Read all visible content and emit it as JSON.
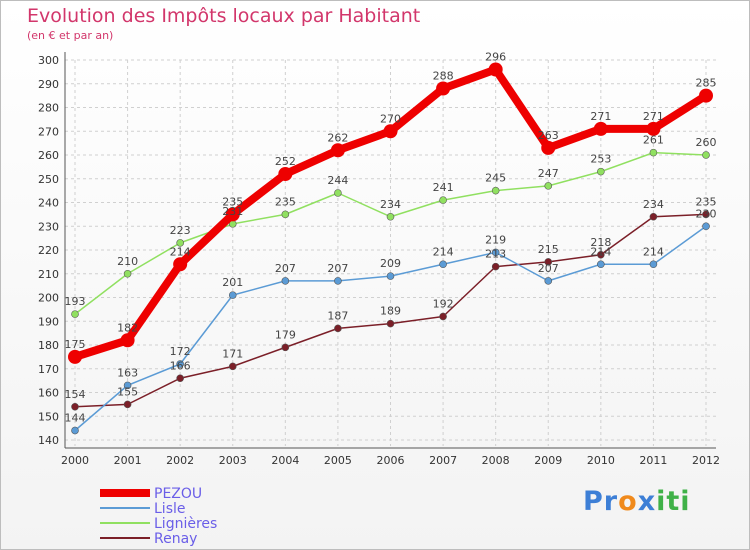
{
  "chart_data": {
    "type": "line",
    "title": "Evolution des Impôts locaux par Habitant",
    "subtitle": "(en € et par an)",
    "x": [
      "2000",
      "2001",
      "2002",
      "2003",
      "2004",
      "2005",
      "2006",
      "2007",
      "2008",
      "2009",
      "2010",
      "2011",
      "2012"
    ],
    "ylim": [
      140,
      300
    ],
    "yticks": [
      140,
      150,
      160,
      170,
      180,
      190,
      200,
      210,
      220,
      230,
      240,
      250,
      260,
      270,
      280,
      290,
      300
    ],
    "grid": true,
    "legend_position": "bottom-left",
    "series": [
      {
        "name": "PEZOU",
        "color": "#ee0000",
        "values": [
          175,
          182,
          214,
          235,
          252,
          262,
          270,
          288,
          296,
          263,
          271,
          271,
          285
        ]
      },
      {
        "name": "Lisle",
        "color": "#5b9bd5",
        "values": [
          144,
          163,
          172,
          201,
          207,
          207,
          209,
          214,
          219,
          207,
          214,
          214,
          230
        ]
      },
      {
        "name": "Lignières",
        "color": "#90e060",
        "values": [
          193,
          210,
          223,
          231,
          235,
          244,
          234,
          241,
          245,
          247,
          253,
          261,
          260
        ]
      },
      {
        "name": "Renay",
        "color": "#7b1f28",
        "values": [
          154,
          155,
          166,
          171,
          179,
          187,
          189,
          192,
          213,
          215,
          218,
          234,
          235
        ]
      }
    ]
  },
  "logo": {
    "letters": [
      "P",
      "r",
      "o",
      "x",
      "i",
      "t",
      "i"
    ],
    "colors": [
      "#3d7fd6",
      "#3d7fd6",
      "#f08a1c",
      "#3d7fd6",
      "#3fb148",
      "#3fb148",
      "#3fb148"
    ]
  }
}
